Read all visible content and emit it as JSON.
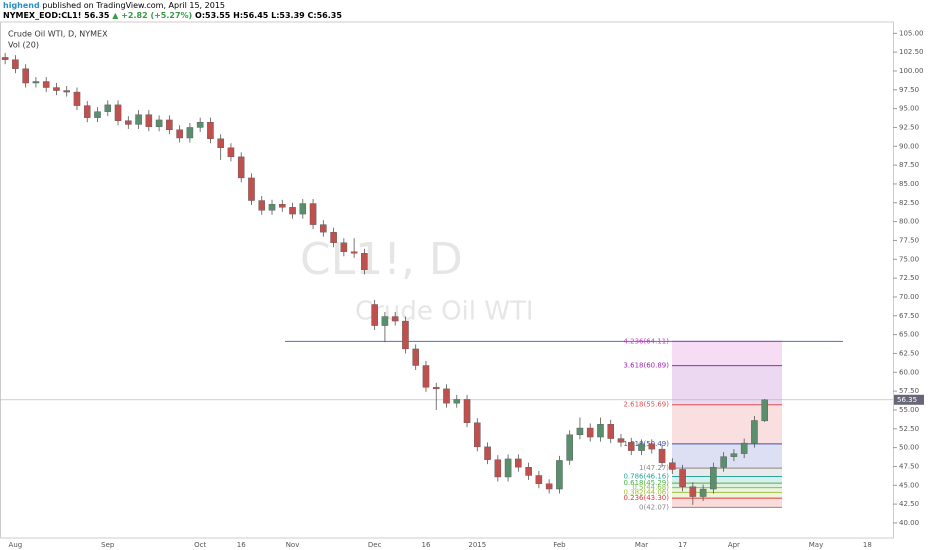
{
  "header": {
    "author": "highend",
    "published": "published on TradingView.com, April 15, 2015",
    "symbol": "NYMEX_EOD:CL1!",
    "last": "56.35",
    "change": "▲ +2.82 (+5.27%)",
    "o": "O:53.55",
    "h": "H:56.45",
    "l": "L:53.39",
    "c": "C:56.35"
  },
  "chart_data": {
    "type": "candlestick",
    "title": "Crude Oil WTI, D, NYMEX",
    "indicator": "Vol (20)",
    "watermark": [
      "CL1!, D",
      "Crude Oil WTI"
    ],
    "categories": [
      null,
      "Aug",
      null,
      null,
      null,
      null,
      null,
      null,
      null,
      null,
      "Sep",
      null,
      null,
      null,
      null,
      null,
      null,
      null,
      null,
      "Oct",
      null,
      null,
      null,
      "16",
      null,
      null,
      null,
      null,
      "Nov",
      null,
      null,
      null,
      null,
      null,
      null,
      null,
      "Dec",
      null,
      null,
      null,
      null,
      "16",
      null,
      null,
      null,
      null,
      "2015",
      null,
      null,
      null,
      null,
      null,
      null,
      null,
      "Feb",
      null,
      null,
      null,
      null,
      null,
      null,
      null,
      "Mar",
      null,
      null,
      null,
      "17",
      null,
      null,
      null,
      null,
      "Apr",
      null,
      null,
      null,
      null,
      null,
      null,
      null,
      "May",
      null,
      null,
      null,
      null,
      "18",
      null,
      null
    ],
    "open": [
      101.8,
      101.5,
      100.3,
      98.4,
      98.6,
      97.8,
      97.4,
      97.2,
      95.4,
      93.8,
      94.6,
      95.5,
      93.4,
      92.9,
      94.2,
      92.6,
      93.5,
      92.2,
      91.1,
      92.5,
      93.2,
      91.0,
      89.8,
      88.6,
      85.8,
      82.8,
      81.5,
      82.3,
      81.9,
      81.0,
      82.4,
      79.6,
      78.6,
      77.2,
      76.0,
      75.8,
      69.0,
      66.2,
      67.4,
      66.8,
      63.1,
      60.9,
      58.0,
      57.8,
      55.9,
      56.4,
      53.3,
      50.1,
      48.4,
      46.1,
      48.5,
      47.4,
      46.3,
      45.2,
      44.5,
      48.3,
      51.7,
      52.6,
      51.4,
      53.1,
      51.2,
      50.7,
      49.6,
      50.5,
      49.8,
      48.0,
      47.1,
      44.8,
      43.5,
      44.5,
      47.4,
      48.8,
      49.2,
      50.6,
      53.55,
      null,
      null,
      null,
      null,
      null,
      null,
      null,
      null,
      null,
      null,
      null,
      null
    ],
    "high": [
      102.4,
      102.1,
      100.9,
      99.2,
      99.2,
      98.4,
      98.0,
      97.8,
      96.0,
      95.2,
      96.1,
      96.1,
      94.0,
      94.8,
      94.8,
      94.1,
      94.1,
      92.8,
      93.1,
      93.8,
      93.8,
      91.6,
      90.4,
      89.2,
      86.4,
      83.4,
      82.9,
      82.9,
      82.5,
      83.0,
      83.0,
      80.2,
      79.2,
      77.8,
      77.8,
      76.4,
      69.6,
      68.0,
      68.0,
      67.4,
      63.7,
      61.5,
      58.6,
      58.4,
      57.0,
      57.0,
      53.9,
      50.7,
      49.0,
      49.1,
      49.1,
      48.0,
      46.9,
      45.8,
      48.9,
      52.3,
      54.0,
      53.2,
      54.0,
      53.7,
      51.8,
      51.3,
      51.1,
      51.1,
      50.4,
      48.6,
      47.7,
      45.4,
      45.1,
      48.0,
      49.4,
      49.8,
      51.2,
      54.2,
      56.45,
      null,
      null,
      null,
      null,
      null,
      null,
      null,
      null,
      null,
      null,
      null,
      null
    ],
    "low": [
      100.9,
      99.7,
      97.8,
      97.8,
      97.2,
      96.8,
      96.6,
      94.8,
      93.2,
      93.2,
      94.0,
      92.8,
      92.3,
      92.3,
      92.0,
      92.0,
      91.6,
      90.5,
      90.5,
      91.9,
      90.4,
      88.2,
      88.0,
      85.2,
      82.2,
      80.9,
      80.9,
      81.3,
      80.4,
      80.4,
      79.0,
      78.0,
      76.6,
      75.4,
      75.2,
      73.0,
      65.6,
      64.0,
      66.2,
      62.5,
      60.3,
      57.4,
      55.0,
      55.3,
      55.3,
      52.7,
      49.5,
      47.8,
      45.5,
      45.5,
      46.8,
      45.7,
      44.6,
      43.9,
      43.9,
      47.7,
      51.1,
      50.8,
      50.8,
      50.6,
      50.1,
      49.0,
      49.0,
      49.2,
      47.4,
      46.5,
      44.2,
      42.4,
      42.9,
      43.9,
      46.8,
      48.2,
      48.6,
      50.0,
      53.39,
      null,
      null,
      null,
      null,
      null,
      null,
      null,
      null,
      null,
      null,
      null,
      null
    ],
    "close": [
      101.5,
      100.3,
      98.4,
      98.6,
      97.8,
      97.4,
      97.2,
      95.4,
      93.8,
      94.6,
      95.5,
      93.4,
      92.9,
      94.2,
      92.6,
      93.5,
      92.2,
      91.1,
      92.5,
      93.2,
      91.0,
      89.8,
      88.6,
      85.8,
      82.8,
      81.5,
      82.3,
      81.9,
      81.0,
      82.4,
      79.6,
      78.6,
      77.2,
      76.0,
      75.8,
      73.6,
      66.2,
      67.4,
      66.8,
      63.1,
      60.9,
      58.0,
      57.8,
      55.9,
      56.4,
      53.3,
      50.1,
      48.4,
      46.1,
      48.5,
      47.4,
      46.3,
      45.2,
      44.5,
      48.3,
      51.7,
      52.6,
      51.4,
      53.1,
      51.2,
      50.7,
      49.6,
      50.5,
      49.8,
      48.0,
      47.1,
      44.8,
      43.5,
      44.5,
      47.4,
      48.8,
      49.2,
      50.6,
      53.6,
      56.35,
      null,
      null,
      null,
      null,
      null,
      null,
      null,
      null,
      null,
      null,
      null,
      null
    ],
    "up_color": "#5a8f6e",
    "down_color": "#c0504d",
    "ylim": [
      38,
      106.5
    ],
    "yticks": [
      {
        "value": 40,
        "label": "40.00"
      },
      {
        "value": 42.5,
        "label": "42.50"
      },
      {
        "value": 45,
        "label": "45.00"
      },
      {
        "value": 47.5,
        "label": "47.50"
      },
      {
        "value": 50,
        "label": "50.00"
      },
      {
        "value": 52.5,
        "label": "52.50"
      },
      {
        "value": 55,
        "label": "55.00"
      },
      {
        "value": 57.5,
        "label": "57.50"
      },
      {
        "value": 60,
        "label": "60.00"
      },
      {
        "value": 62.5,
        "label": "62.50"
      },
      {
        "value": 65,
        "label": "65.00"
      },
      {
        "value": 67.5,
        "label": "67.50"
      },
      {
        "value": 70,
        "label": "70.00"
      },
      {
        "value": 72.5,
        "label": "72.50"
      },
      {
        "value": 75,
        "label": "75.00"
      },
      {
        "value": 77.5,
        "label": "77.50"
      },
      {
        "value": 80,
        "label": "80.00"
      },
      {
        "value": 82.5,
        "label": "82.50"
      },
      {
        "value": 85,
        "label": "85.00"
      },
      {
        "value": 87.5,
        "label": "87.50"
      },
      {
        "value": 90,
        "label": "90.00"
      },
      {
        "value": 92.5,
        "label": "92.50"
      },
      {
        "value": 95,
        "label": "95.00"
      },
      {
        "value": 97.5,
        "label": "97.50"
      },
      {
        "value": 100,
        "label": "100.00"
      },
      {
        "value": 102.5,
        "label": "102.50"
      },
      {
        "value": 105,
        "label": "105.00"
      }
    ],
    "last_price": 56.35,
    "hline": {
      "value": 64.11,
      "color": "#4a6fd0"
    },
    "fib_levels": [
      {
        "value": 64.11,
        "label": "4.236(64.11)",
        "color": "#d040c0"
      },
      {
        "value": 60.89,
        "label": "3.618(60.89)",
        "color": "#9c27b0"
      },
      {
        "value": 55.69,
        "label": "2.618(55.69)",
        "color": "#e05050"
      },
      {
        "value": 50.49,
        "label": "1.618(50.49)",
        "color": "#3f51b5"
      },
      {
        "value": 47.27,
        "label": "1(47.27)",
        "color": "#888888"
      },
      {
        "value": 46.16,
        "label": "0.786(46.16)",
        "color": "#26a69a"
      },
      {
        "value": 45.29,
        "label": "0.618(45.29)",
        "color": "#4caf50"
      },
      {
        "value": 44.68,
        "label": "0.5(44.68)",
        "color": "#8bc34a"
      },
      {
        "value": 44.06,
        "label": "0.382(44.06)",
        "color": "#a0c040"
      },
      {
        "value": 43.3,
        "label": "0.236(43.30)",
        "color": "#e53935"
      },
      {
        "value": 42.07,
        "label": "0(42.07)",
        "color": "#888888"
      }
    ]
  }
}
